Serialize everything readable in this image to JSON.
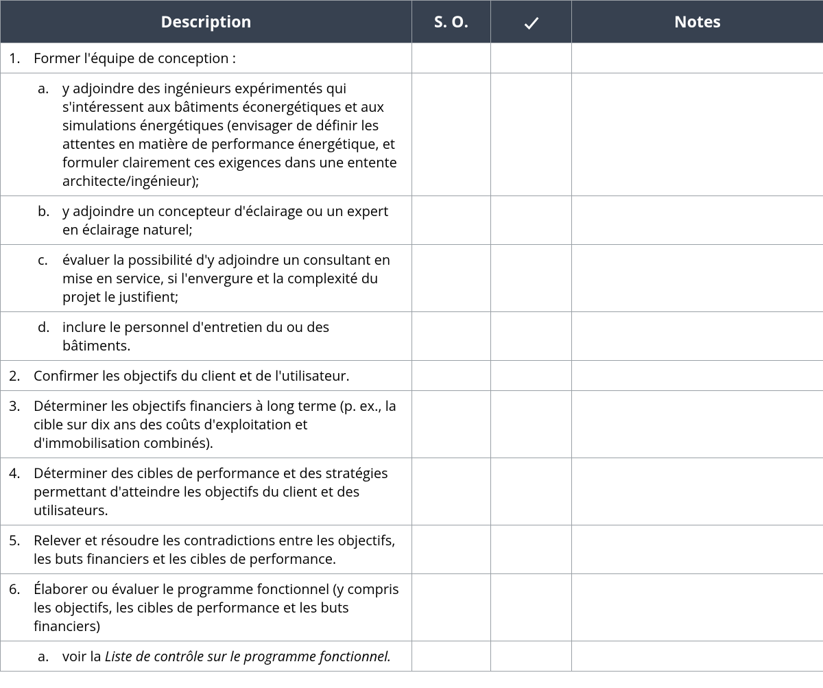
{
  "header": {
    "description": "Description",
    "so": "S. O.",
    "notes": "Notes"
  },
  "colors": {
    "header_bg": "#374150",
    "header_text": "#ffffff",
    "border": "#9aa0a6",
    "body_text": "#000000"
  },
  "rows": [
    {
      "type": "numbered",
      "marker": "1.",
      "text": "Former l'équipe de conception :"
    },
    {
      "type": "sub",
      "marker": "a.",
      "text": "y adjoindre des ingénieurs expérimentés qui s'intéressent aux bâtiments éconergétiques et aux simulations énergétiques (envisager de définir les attentes en matière de performance énergétique, et formuler clairement ces exigences dans une entente architecte/ingénieur);"
    },
    {
      "type": "sub",
      "marker": "b.",
      "text": "y adjoindre un concepteur d'éclairage ou un expert en éclairage naturel;"
    },
    {
      "type": "sub",
      "marker": "c.",
      "text": "évaluer la possibilité d'y adjoindre un consultant en mise en service, si l'envergure et la complexité du projet le justifient;"
    },
    {
      "type": "sub",
      "marker": "d.",
      "text": "inclure le personnel d'entretien du ou des bâtiments."
    },
    {
      "type": "numbered",
      "marker": "2.",
      "text": "Confirmer les objectifs du client et de l'utilisateur."
    },
    {
      "type": "numbered",
      "marker": "3.",
      "text": "Déterminer les objectifs financiers à long terme (p. ex., la cible sur dix ans des coûts d'exploitation et d'immobilisation combinés)."
    },
    {
      "type": "numbered",
      "marker": "4.",
      "text": "Déterminer des cibles de performance et des stratégies permettant d'atteindre les objectifs du client et des utilisateurs."
    },
    {
      "type": "numbered",
      "marker": "5.",
      "text": "Relever et résoudre les contradictions entre les objectifs, les buts financiers et les cibles de performance."
    },
    {
      "type": "numbered",
      "marker": "6.",
      "text": "Élaborer ou évaluer le programme fonctionnel (y compris les objectifs, les cibles de performance et les buts financiers)"
    },
    {
      "type": "sub",
      "marker": "a.",
      "text_prefix": "voir la ",
      "text_italic": "Liste de contrôle sur le programme fonctionnel."
    }
  ]
}
